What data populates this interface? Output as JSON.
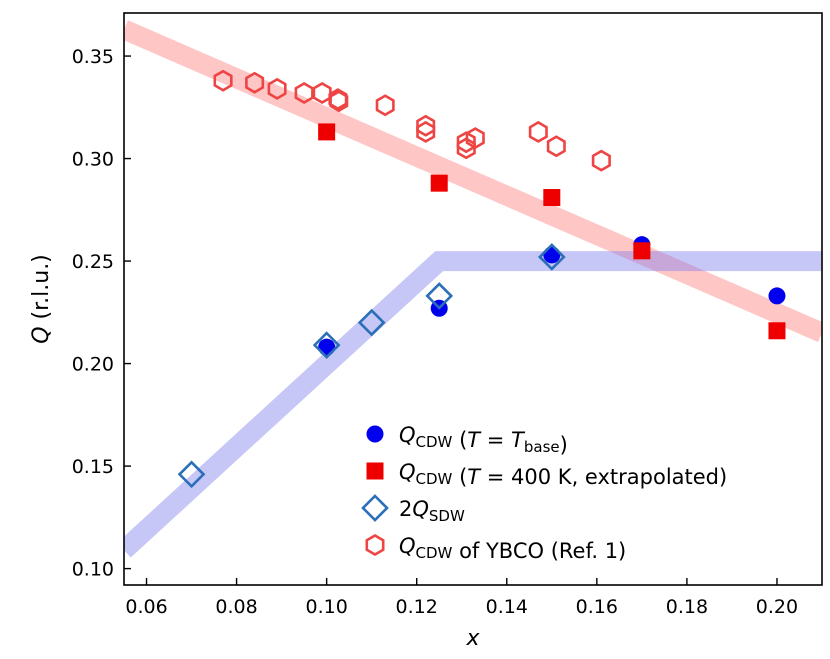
{
  "chart_data": {
    "type": "scatter",
    "xlabel": "x",
    "ylabel": "Q (r.l.u.)",
    "xlim": [
      0.055,
      0.21
    ],
    "ylim": [
      0.092,
      0.371
    ],
    "x_ticks": [
      0.06,
      0.08,
      0.1,
      0.12,
      0.14,
      0.16,
      0.18,
      0.2
    ],
    "x_tick_labels": [
      "0.06",
      "0.08",
      "0.10",
      "0.12",
      "0.14",
      "0.16",
      "0.18",
      "0.20"
    ],
    "y_ticks": [
      0.1,
      0.15,
      0.2,
      0.25,
      0.3,
      0.35
    ],
    "y_tick_labels": [
      "0.10",
      "0.15",
      "0.20",
      "0.25",
      "0.30",
      "0.35"
    ],
    "grid": false,
    "legend_position": "bottom-right",
    "guide_bands": [
      {
        "color": "#ff8080",
        "opacity": 0.45,
        "points": [
          [
            0.055,
            0.363
          ],
          [
            0.21,
            0.215
          ]
        ]
      },
      {
        "color": "#8080ee",
        "opacity": 0.45,
        "points": [
          [
            0.055,
            0.109
          ],
          [
            0.125,
            0.25
          ],
          [
            0.21,
            0.25
          ]
        ]
      }
    ],
    "series": [
      {
        "name": "Q_CDW (T = T_base)",
        "marker": "circle",
        "color": "#0000ee",
        "points": [
          [
            0.1,
            0.208
          ],
          [
            0.125,
            0.227
          ],
          [
            0.15,
            0.253
          ],
          [
            0.17,
            0.258
          ],
          [
            0.2,
            0.233
          ]
        ]
      },
      {
        "name": "Q_CDW (T = 400 K, extrapolated)",
        "marker": "square",
        "color": "#ee0000",
        "points": [
          [
            0.1,
            0.313
          ],
          [
            0.125,
            0.288
          ],
          [
            0.15,
            0.281
          ],
          [
            0.17,
            0.255
          ],
          [
            0.2,
            0.216
          ]
        ]
      },
      {
        "name": "2Q_SDW",
        "marker": "diamond",
        "color": "#2a6fb8",
        "points": [
          [
            0.07,
            0.146
          ],
          [
            0.1,
            0.209
          ],
          [
            0.11,
            0.22
          ],
          [
            0.125,
            0.233
          ],
          [
            0.15,
            0.252
          ]
        ]
      },
      {
        "name": "Q_CDW of YBCO (Ref. 1)",
        "marker": "hexagon",
        "color": "#ee4444",
        "points": [
          [
            0.077,
            0.338
          ],
          [
            0.084,
            0.337
          ],
          [
            0.089,
            0.334
          ],
          [
            0.095,
            0.332
          ],
          [
            0.099,
            0.332
          ],
          [
            0.1025,
            0.329
          ],
          [
            0.1027,
            0.328
          ],
          [
            0.113,
            0.326
          ],
          [
            0.122,
            0.316
          ],
          [
            0.122,
            0.313
          ],
          [
            0.131,
            0.305
          ],
          [
            0.131,
            0.308
          ],
          [
            0.133,
            0.31
          ],
          [
            0.147,
            0.313
          ],
          [
            0.151,
            0.306
          ],
          [
            0.161,
            0.299
          ]
        ]
      }
    ],
    "legend": [
      {
        "marker": "circle",
        "color": "#0000ee",
        "main": "Q",
        "sub": "CDW",
        "after": " (",
        "italic2": "T",
        "mid": " = ",
        "italic3": "T",
        "sub2": "base",
        "end": ")"
      },
      {
        "marker": "square",
        "color": "#ee0000",
        "main": "Q",
        "sub": "CDW",
        "after": " (",
        "italic2": "T",
        "mid": " = 400 K, extrapolated)",
        "italic3": "",
        "sub2": "",
        "end": ""
      },
      {
        "marker": "diamond",
        "color": "#2a6fb8",
        "pre": "2",
        "main": "Q",
        "sub": "SDW",
        "after": "",
        "italic2": "",
        "mid": "",
        "italic3": "",
        "sub2": "",
        "end": ""
      },
      {
        "marker": "hexagon",
        "color": "#ee4444",
        "main": "Q",
        "sub": "CDW",
        "after": " of YBCO (Ref. 1)",
        "italic2": "",
        "mid": "",
        "italic3": "",
        "sub2": "",
        "end": ""
      }
    ]
  }
}
